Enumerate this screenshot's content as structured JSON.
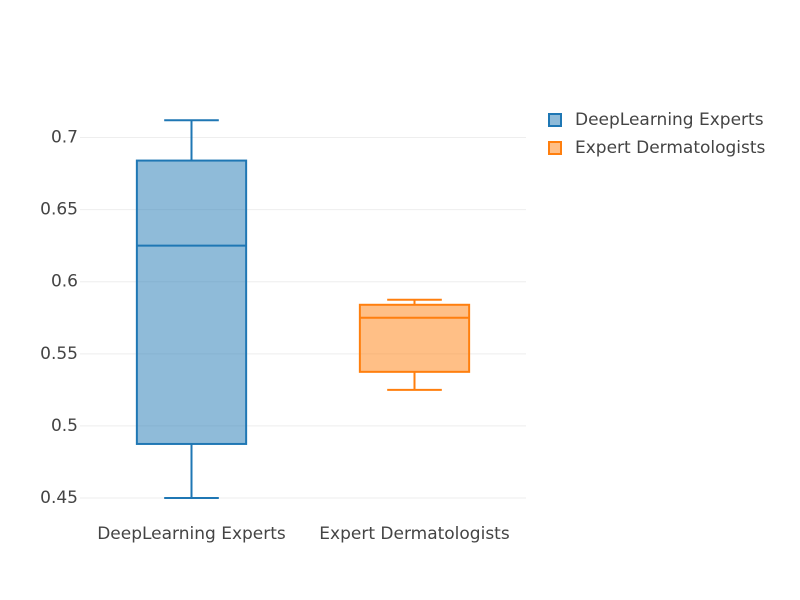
{
  "chart_data": {
    "type": "box",
    "categories": [
      "DeepLearning Experts",
      "Expert Dermatologists"
    ],
    "series": [
      {
        "name": "DeepLearning Experts",
        "color": "#1f77b4",
        "min": 0.45,
        "q1": 0.4875,
        "median": 0.625,
        "q3": 0.684,
        "max": 0.712
      },
      {
        "name": "Expert Dermatologists",
        "color": "#ff7f0e",
        "min": 0.525,
        "q1": 0.5375,
        "median": 0.575,
        "q3": 0.584,
        "max": 0.5875
      }
    ],
    "ylim": [
      0.4417,
      0.726
    ],
    "yticks": [
      0.45,
      0.5,
      0.55,
      0.6,
      0.65,
      0.7
    ],
    "grid": true,
    "legend": "top-right"
  }
}
